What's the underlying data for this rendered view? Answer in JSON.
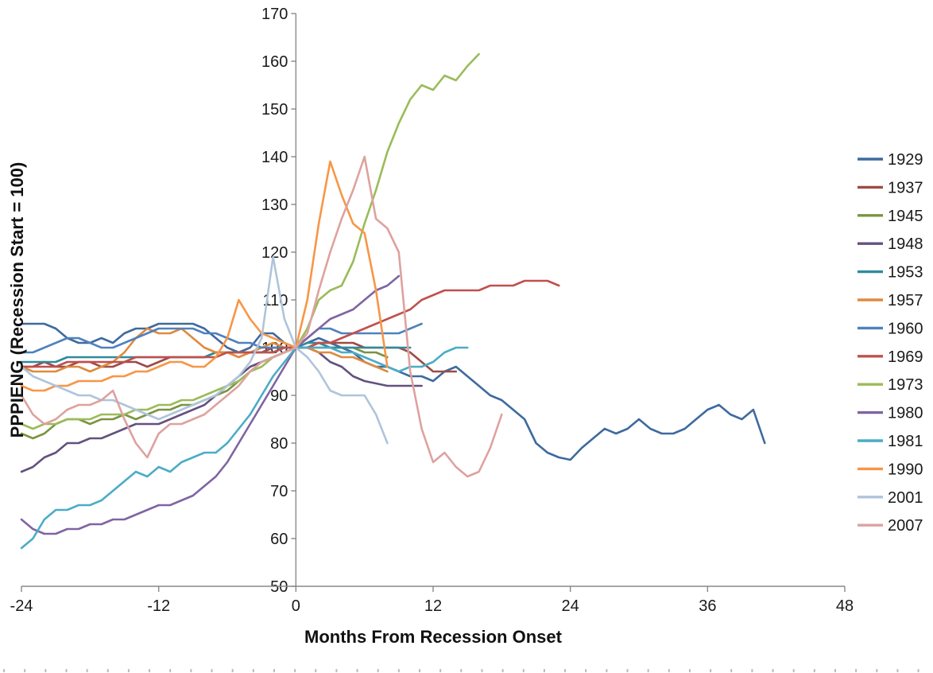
{
  "chart_data": {
    "type": "line",
    "title": "",
    "xlabel": "Months From Recession Onset",
    "ylabel": "PPPIENG (Recession Start = 100)",
    "xlim": [
      -24,
      48
    ],
    "ylim": [
      50,
      170
    ],
    "xticks": [
      -24,
      -12,
      0,
      12,
      24,
      36,
      48
    ],
    "yticks": [
      50,
      60,
      70,
      80,
      90,
      100,
      110,
      120,
      130,
      140,
      150,
      160,
      170
    ],
    "grid": false,
    "legend_position": "right",
    "axis_color": "#898989",
    "text_color": "#1a1a1a",
    "x_step": 1,
    "series": [
      {
        "name": "1929",
        "color": "#3E6A9E",
        "x_start": -24,
        "values": [
          105,
          105,
          105,
          104,
          102,
          101,
          101,
          102,
          101,
          103,
          104,
          104,
          105,
          105,
          105,
          105,
          104,
          102,
          100,
          99,
          100,
          103,
          103,
          101,
          100,
          101,
          102,
          101,
          100,
          99,
          97,
          96,
          96,
          95,
          94,
          94,
          93,
          95,
          96,
          94,
          92,
          90,
          89,
          87,
          85,
          80,
          78,
          77,
          76.5,
          79,
          81,
          83,
          82,
          83,
          85,
          83,
          82,
          82,
          83,
          85,
          87,
          88,
          86,
          85,
          87,
          80
        ]
      },
      {
        "name": "1937",
        "color": "#9E4A45",
        "x_start": -24,
        "values": [
          96,
          96,
          97,
          96,
          96,
          97,
          97,
          96,
          96,
          97,
          97,
          96,
          97,
          98,
          98,
          98,
          98,
          99,
          99,
          99,
          99,
          99,
          100,
          100,
          100,
          100,
          101,
          101,
          101,
          101,
          100,
          100,
          100,
          100,
          99,
          97,
          95,
          95,
          95
        ]
      },
      {
        "name": "1945",
        "color": "#7A9440",
        "x_start": -24,
        "values": [
          82,
          81,
          82,
          84,
          85,
          85,
          84,
          85,
          85,
          86,
          85,
          86,
          87,
          87,
          88,
          88,
          89,
          90,
          91,
          93,
          95,
          97,
          98,
          99,
          100,
          100,
          100,
          100,
          100,
          100,
          99,
          99,
          98
        ]
      },
      {
        "name": "1948",
        "color": "#64517E",
        "x_start": -24,
        "values": [
          74,
          75,
          77,
          78,
          80,
          80,
          81,
          81,
          82,
          83,
          84,
          84,
          84,
          85,
          86,
          87,
          88,
          90,
          92,
          94,
          96,
          97,
          98,
          99,
          100,
          100,
          99,
          97,
          96,
          94,
          93,
          92.5,
          92,
          92,
          92,
          92
        ]
      },
      {
        "name": "1953",
        "color": "#2E8B9E",
        "x_start": -24,
        "values": [
          97,
          97,
          97,
          97,
          98,
          98,
          98,
          98,
          98,
          98,
          98,
          98,
          98,
          98,
          98,
          98,
          98,
          99,
          99,
          99,
          99,
          99,
          99,
          100,
          100,
          101,
          101,
          100,
          100,
          100,
          100,
          100,
          100,
          100,
          100
        ]
      },
      {
        "name": "1957",
        "color": "#DF8A3D",
        "x_start": -24,
        "values": [
          96,
          95,
          95,
          95,
          96,
          96,
          95,
          96,
          97,
          99,
          102,
          104,
          103,
          103,
          104,
          102,
          100,
          99,
          99,
          98,
          99,
          100,
          101,
          100,
          100,
          100,
          99,
          99,
          98,
          98,
          97,
          96,
          95
        ]
      },
      {
        "name": "1960",
        "color": "#4F81BD",
        "x_start": -24,
        "values": [
          99,
          99,
          100,
          101,
          102,
          102,
          101,
          100,
          100,
          101,
          102,
          103,
          104,
          104,
          104,
          104,
          103,
          103,
          102,
          101,
          101,
          100,
          100,
          100,
          100,
          102,
          104,
          104,
          103,
          103,
          103,
          103,
          103,
          103,
          104,
          105
        ]
      },
      {
        "name": "1969",
        "color": "#C0504D",
        "x_start": -24,
        "values": [
          96,
          96,
          96,
          96,
          97,
          97,
          97,
          97,
          97,
          97,
          98,
          98,
          98,
          98,
          98,
          98,
          98,
          98,
          99,
          99,
          99,
          99,
          99,
          100,
          100,
          100,
          101,
          101,
          102,
          103,
          104,
          105,
          106,
          107,
          108,
          110,
          111,
          112,
          112,
          112,
          112,
          113,
          113,
          113,
          114,
          114,
          114,
          113
        ]
      },
      {
        "name": "1973",
        "color": "#9BBB59",
        "x_start": -24,
        "values": [
          84,
          83,
          84,
          84,
          85,
          85,
          85,
          86,
          86,
          86,
          87,
          87,
          88,
          88,
          89,
          89,
          90,
          91,
          92,
          93,
          95,
          96,
          98,
          99,
          100,
          104,
          110,
          112,
          113,
          118,
          126,
          133,
          141,
          147,
          152,
          155,
          154,
          157,
          156,
          159,
          161.5
        ]
      },
      {
        "name": "1980",
        "color": "#8064A2",
        "x_start": -24,
        "values": [
          64,
          62,
          61,
          61,
          62,
          62,
          63,
          63,
          64,
          64,
          65,
          66,
          67,
          67,
          68,
          69,
          71,
          73,
          76,
          80,
          84,
          88,
          92,
          96,
          100,
          102,
          104,
          106,
          107,
          108,
          110,
          112,
          113,
          115
        ]
      },
      {
        "name": "1981",
        "color": "#4BACC6",
        "x_start": -24,
        "values": [
          58,
          60,
          64,
          66,
          66,
          67,
          67,
          68,
          70,
          72,
          74,
          73,
          75,
          74,
          76,
          77,
          78,
          78,
          80,
          83,
          86,
          90,
          94,
          97,
          100,
          100,
          100,
          100,
          99,
          99,
          98,
          97,
          96,
          95,
          96,
          96,
          97,
          99,
          100,
          100
        ]
      },
      {
        "name": "1990",
        "color": "#F79646",
        "x_start": -24,
        "values": [
          92,
          91,
          91,
          92,
          92,
          93,
          93,
          93,
          94,
          94,
          95,
          95,
          96,
          97,
          97,
          96,
          96,
          98,
          102,
          110,
          106,
          103,
          102,
          101,
          100,
          110,
          126,
          139,
          132,
          126,
          124,
          112,
          96
        ]
      },
      {
        "name": "2001",
        "color": "#AFC4DC",
        "x_start": -24,
        "values": [
          96,
          94,
          93,
          92,
          91,
          90,
          90,
          89,
          89,
          88,
          87,
          86,
          85,
          86,
          87,
          88,
          89,
          90,
          92,
          94,
          97,
          102,
          119,
          106,
          100,
          98,
          95,
          91,
          90,
          90,
          90,
          86,
          80
        ]
      },
      {
        "name": "2007",
        "color": "#DDA29F",
        "x_start": -24,
        "values": [
          90,
          86,
          84,
          85,
          87,
          88,
          88,
          89,
          91,
          85,
          80,
          77,
          82,
          84,
          84,
          85,
          86,
          88,
          90,
          92,
          95,
          97,
          98,
          99,
          100,
          103,
          112,
          120,
          127,
          133,
          140,
          127,
          125,
          120,
          95,
          83,
          76,
          78,
          75,
          73,
          74,
          79,
          86
        ]
      }
    ]
  }
}
